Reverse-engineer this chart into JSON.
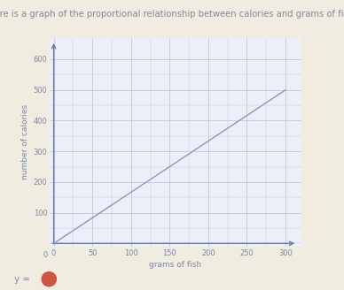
{
  "title": "Here is a graph of the proportional relationship between calories and grams of fish:",
  "xlabel": "grams of fish",
  "ylabel": "number of calories",
  "xlim": [
    -5,
    320
  ],
  "ylim": [
    -10,
    670
  ],
  "xticks": [
    0,
    50,
    100,
    150,
    200,
    250,
    300
  ],
  "yticks": [
    100,
    200,
    300,
    400,
    500,
    600
  ],
  "line_x": [
    0,
    300
  ],
  "line_y": [
    0,
    500
  ],
  "line_color": "#8899bb",
  "grid_color": "#b8c0d8",
  "axis_color": "#6677aa",
  "bg_color": "#f0ece0",
  "plot_bg_color": "#eceef8",
  "title_color": "#888899",
  "label_color": "#7788aa",
  "tick_color": "#7788aa",
  "title_fontsize": 7.2,
  "label_fontsize": 6.5,
  "tick_fontsize": 6.0,
  "ylabel_circle_color": "#cc5544",
  "arrow_color": "#6677aa"
}
